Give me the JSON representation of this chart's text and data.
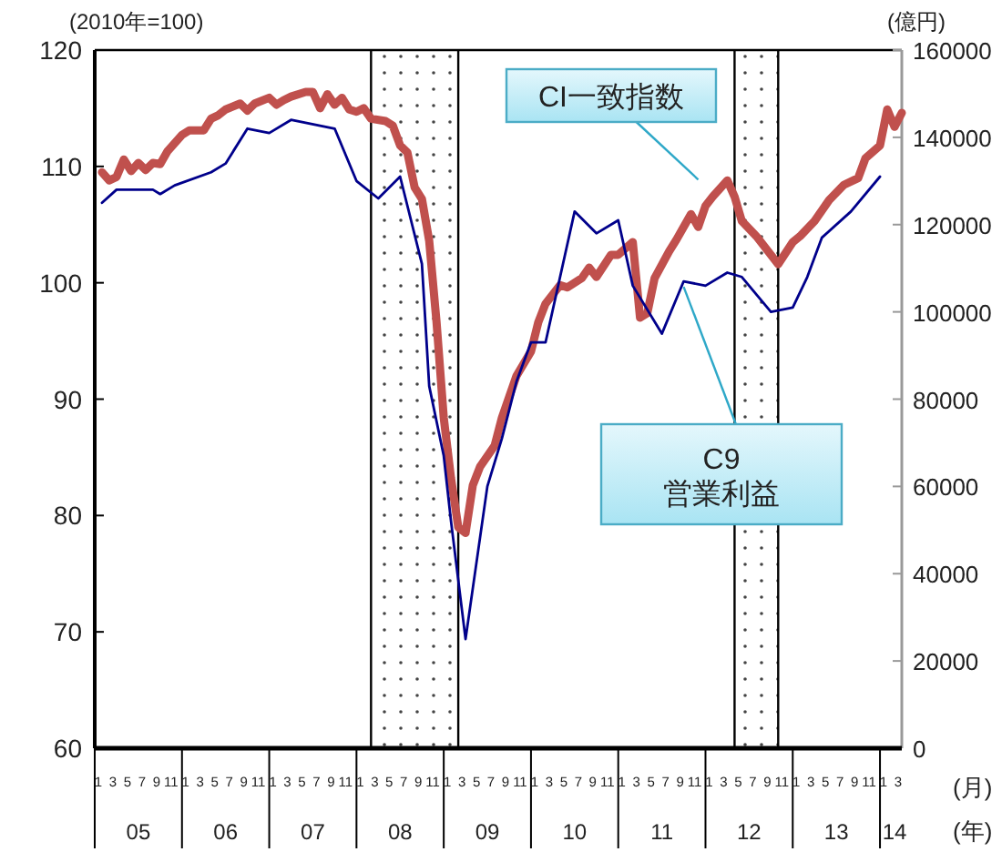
{
  "chart_data": {
    "type": "line",
    "xlabel": "(月)",
    "x2label": "(年)",
    "ylabel": "(2010年=100)",
    "y2label": "(億円)",
    "xlim": [
      "2005-01",
      "2014-04"
    ],
    "ylim": [
      60,
      120
    ],
    "yticks": [
      60,
      70,
      80,
      90,
      100,
      110,
      120
    ],
    "y2lim": [
      0,
      160000
    ],
    "y2ticks": [
      0,
      20000,
      40000,
      60000,
      80000,
      100000,
      120000,
      140000,
      160000
    ],
    "xticks": [
      {
        "value": "2005-01-16",
        "label": "1"
      },
      {
        "value": "2005-03-16",
        "label": "3"
      },
      {
        "value": "2005-05-16",
        "label": "5"
      },
      {
        "value": "2005-07-16",
        "label": "7"
      },
      {
        "value": "2005-09-16",
        "label": "9"
      },
      {
        "value": "2005-11-16",
        "label": "11"
      },
      {
        "value": "2006-01-16",
        "label": "1"
      },
      {
        "value": "2006-03-16",
        "label": "3"
      },
      {
        "value": "2006-05-16",
        "label": "5"
      },
      {
        "value": "2006-07-16",
        "label": "7"
      },
      {
        "value": "2006-09-16",
        "label": "9"
      },
      {
        "value": "2006-11-16",
        "label": "11"
      },
      {
        "value": "2007-01-16",
        "label": "1"
      },
      {
        "value": "2007-03-16",
        "label": "3"
      },
      {
        "value": "2007-05-16",
        "label": "5"
      },
      {
        "value": "2007-07-16",
        "label": "7"
      },
      {
        "value": "2007-09-16",
        "label": "9"
      },
      {
        "value": "2007-11-16",
        "label": "11"
      },
      {
        "value": "2008-01-16",
        "label": "1"
      },
      {
        "value": "2008-03-16",
        "label": "3"
      },
      {
        "value": "2008-05-16",
        "label": "5"
      },
      {
        "value": "2008-07-16",
        "label": "7"
      },
      {
        "value": "2008-09-16",
        "label": "9"
      },
      {
        "value": "2008-11-16",
        "label": "11"
      },
      {
        "value": "2009-01-16",
        "label": "1"
      },
      {
        "value": "2009-03-16",
        "label": "3"
      },
      {
        "value": "2009-05-16",
        "label": "5"
      },
      {
        "value": "2009-07-16",
        "label": "7"
      },
      {
        "value": "2009-09-16",
        "label": "9"
      },
      {
        "value": "2009-11-16",
        "label": "11"
      },
      {
        "value": "2010-01-16",
        "label": "1"
      },
      {
        "value": "2010-03-16",
        "label": "3"
      },
      {
        "value": "2010-05-16",
        "label": "5"
      },
      {
        "value": "2010-07-16",
        "label": "7"
      },
      {
        "value": "2010-09-16",
        "label": "9"
      },
      {
        "value": "2010-11-16",
        "label": "11"
      },
      {
        "value": "2011-01-16",
        "label": "1"
      },
      {
        "value": "2011-03-16",
        "label": "3"
      },
      {
        "value": "2011-05-16",
        "label": "5"
      },
      {
        "value": "2011-07-16",
        "label": "7"
      },
      {
        "value": "2011-09-16",
        "label": "9"
      },
      {
        "value": "2011-11-16",
        "label": "11"
      },
      {
        "value": "2012-01-16",
        "label": "1"
      },
      {
        "value": "2012-03-16",
        "label": "3"
      },
      {
        "value": "2012-05-16",
        "label": "5"
      },
      {
        "value": "2012-07-16",
        "label": "7"
      },
      {
        "value": "2012-09-16",
        "label": "9"
      },
      {
        "value": "2012-11-16",
        "label": "11"
      },
      {
        "value": "2013-01-16",
        "label": "1"
      },
      {
        "value": "2013-03-16",
        "label": "3"
      },
      {
        "value": "2013-05-16",
        "label": "5"
      },
      {
        "value": "2013-07-16",
        "label": "7"
      },
      {
        "value": "2013-09-16",
        "label": "9"
      },
      {
        "value": "2013-11-16",
        "label": "11"
      },
      {
        "value": "2014-01-16",
        "label": "1"
      },
      {
        "value": "2014-03-16",
        "label": "3"
      },
      {
        "value": "2005-01",
        "label": null
      },
      {
        "value": "2006-01",
        "label": null
      },
      {
        "value": "2007-01",
        "label": null
      },
      {
        "value": "2008-01",
        "label": null
      },
      {
        "value": "2009-01",
        "label": null
      },
      {
        "value": "2010-01",
        "label": null
      },
      {
        "value": "2011-01",
        "label": null
      },
      {
        "value": "2012-01",
        "label": null
      },
      {
        "value": "2013-01",
        "label": null
      },
      {
        "value": "2014-01",
        "label": null
      }
    ],
    "x2lim": [
      "2005-01",
      "2014-04"
    ],
    "x2ticks": [
      {
        "value": "2005-07",
        "label": "05"
      },
      {
        "value": "2006-07",
        "label": "06"
      },
      {
        "value": "2007-07",
        "label": "07"
      },
      {
        "value": "2008-07",
        "label": "08"
      },
      {
        "value": "2009-07",
        "label": "09"
      },
      {
        "value": "2010-07",
        "label": "10"
      },
      {
        "value": "2011-07",
        "label": "11"
      },
      {
        "value": "2012-07",
        "label": "12"
      },
      {
        "value": "2013-07",
        "label": "13"
      },
      {
        "value": "2014-03",
        "label": "14"
      }
    ],
    "bands": [
      {
        "axis": "x",
        "from": "2008-03",
        "to": "2009-03"
      },
      {
        "axis": "x",
        "from": "2012-05",
        "to": "2012-11"
      }
    ],
    "grid": false,
    "legend": false,
    "series": [
      {
        "name": "CI一致指数",
        "color": "#c0504d",
        "x": [
          "2005-02",
          "2005-03",
          "2005-04",
          "2005-05",
          "2005-06",
          "2005-07",
          "2005-08",
          "2005-09",
          "2005-10",
          "2005-11",
          "2006-01",
          "2006-02",
          "2006-04",
          "2006-05",
          "2006-06",
          "2006-07",
          "2006-09",
          "2006-10",
          "2006-11",
          "2007-01",
          "2007-02",
          "2007-03",
          "2007-04",
          "2007-06",
          "2007-07",
          "2007-08",
          "2007-09",
          "2007-10",
          "2007-11",
          "2007-12",
          "2008-01",
          "2008-02",
          "2008-03",
          "2008-05",
          "2008-06",
          "2008-07",
          "2008-08",
          "2008-09",
          "2008-10",
          "2008-11",
          "2008-12",
          "2009-01",
          "2009-02",
          "2009-03",
          "2009-04",
          "2009-05",
          "2009-06",
          "2009-08",
          "2009-09",
          "2009-11",
          "2010-01",
          "2010-02",
          "2010-03",
          "2010-05",
          "2010-06",
          "2010-08",
          "2010-09",
          "2010-10",
          "2010-12",
          "2011-01",
          "2011-03",
          "2011-04",
          "2011-05",
          "2011-06",
          "2011-08",
          "2011-09",
          "2011-11",
          "2011-12",
          "2012-01",
          "2012-02",
          "2012-04",
          "2012-05",
          "2012-06",
          "2012-08",
          "2012-10",
          "2012-11",
          "2013-01",
          "2013-02",
          "2013-04",
          "2013-06",
          "2013-08",
          "2013-10",
          "2013-11",
          "2014-01",
          "2014-02",
          "2014-03",
          "2014-04"
        ],
        "values": [
          109.5,
          108.8,
          109.1,
          110.6,
          109.6,
          110.3,
          109.7,
          110.3,
          110.2,
          111.3,
          112.7,
          113.1,
          113.1,
          114.1,
          114.4,
          114.9,
          115.4,
          114.8,
          115.4,
          115.9,
          115.3,
          115.7,
          116.0,
          116.4,
          116.4,
          115.0,
          116.2,
          115.3,
          115.9,
          114.9,
          114.7,
          115.0,
          114.1,
          113.9,
          113.5,
          111.8,
          111.2,
          108.2,
          107.2,
          103.6,
          96.7,
          88.4,
          83.2,
          79.0,
          78.5,
          82.6,
          84.2,
          86.0,
          88.4,
          92.0,
          94.1,
          96.6,
          98.2,
          99.8,
          99.6,
          100.4,
          101.3,
          100.5,
          102.4,
          102.4,
          103.5,
          97.0,
          97.4,
          100.4,
          102.7,
          103.7,
          105.9,
          104.8,
          106.6,
          107.4,
          108.8,
          107.4,
          105.3,
          104.0,
          102.4,
          101.6,
          103.5,
          104.0,
          105.3,
          107.1,
          108.4,
          109.0,
          110.7,
          111.8,
          114.9,
          113.4,
          114.6
        ]
      },
      {
        "name": "C9\n営業利益",
        "color": "#00008b",
        "axis": "y2",
        "x": [
          "2005-02",
          "2005-04",
          "2005-06",
          "2005-09",
          "2005-10",
          "2005-12",
          "2006-05",
          "2006-07",
          "2006-10",
          "2007-01",
          "2007-04",
          "2007-10",
          "2008-01",
          "2008-04",
          "2008-07",
          "2008-10",
          "2008-11",
          "2009-01",
          "2009-02",
          "2009-04",
          "2009-07",
          "2009-09",
          "2009-11",
          "2010-01",
          "2010-03",
          "2010-07",
          "2010-10",
          "2011-01",
          "2011-03",
          "2011-07",
          "2011-10",
          "2012-01",
          "2012-04",
          "2012-06",
          "2012-10",
          "2013-01",
          "2013-03",
          "2013-05",
          "2013-09",
          "2014-01"
        ],
        "values": [
          125000,
          128000,
          128000,
          128000,
          127000,
          129000,
          132000,
          134000,
          142000,
          141000,
          144000,
          142000,
          130000,
          126000,
          131000,
          111000,
          83000,
          67000,
          52000,
          25000,
          60000,
          71000,
          84000,
          93000,
          93000,
          123000,
          118000,
          121000,
          106000,
          95000,
          107000,
          106000,
          109000,
          108000,
          100000,
          101000,
          108000,
          117000,
          123000,
          131000
        ]
      }
    ]
  }
}
